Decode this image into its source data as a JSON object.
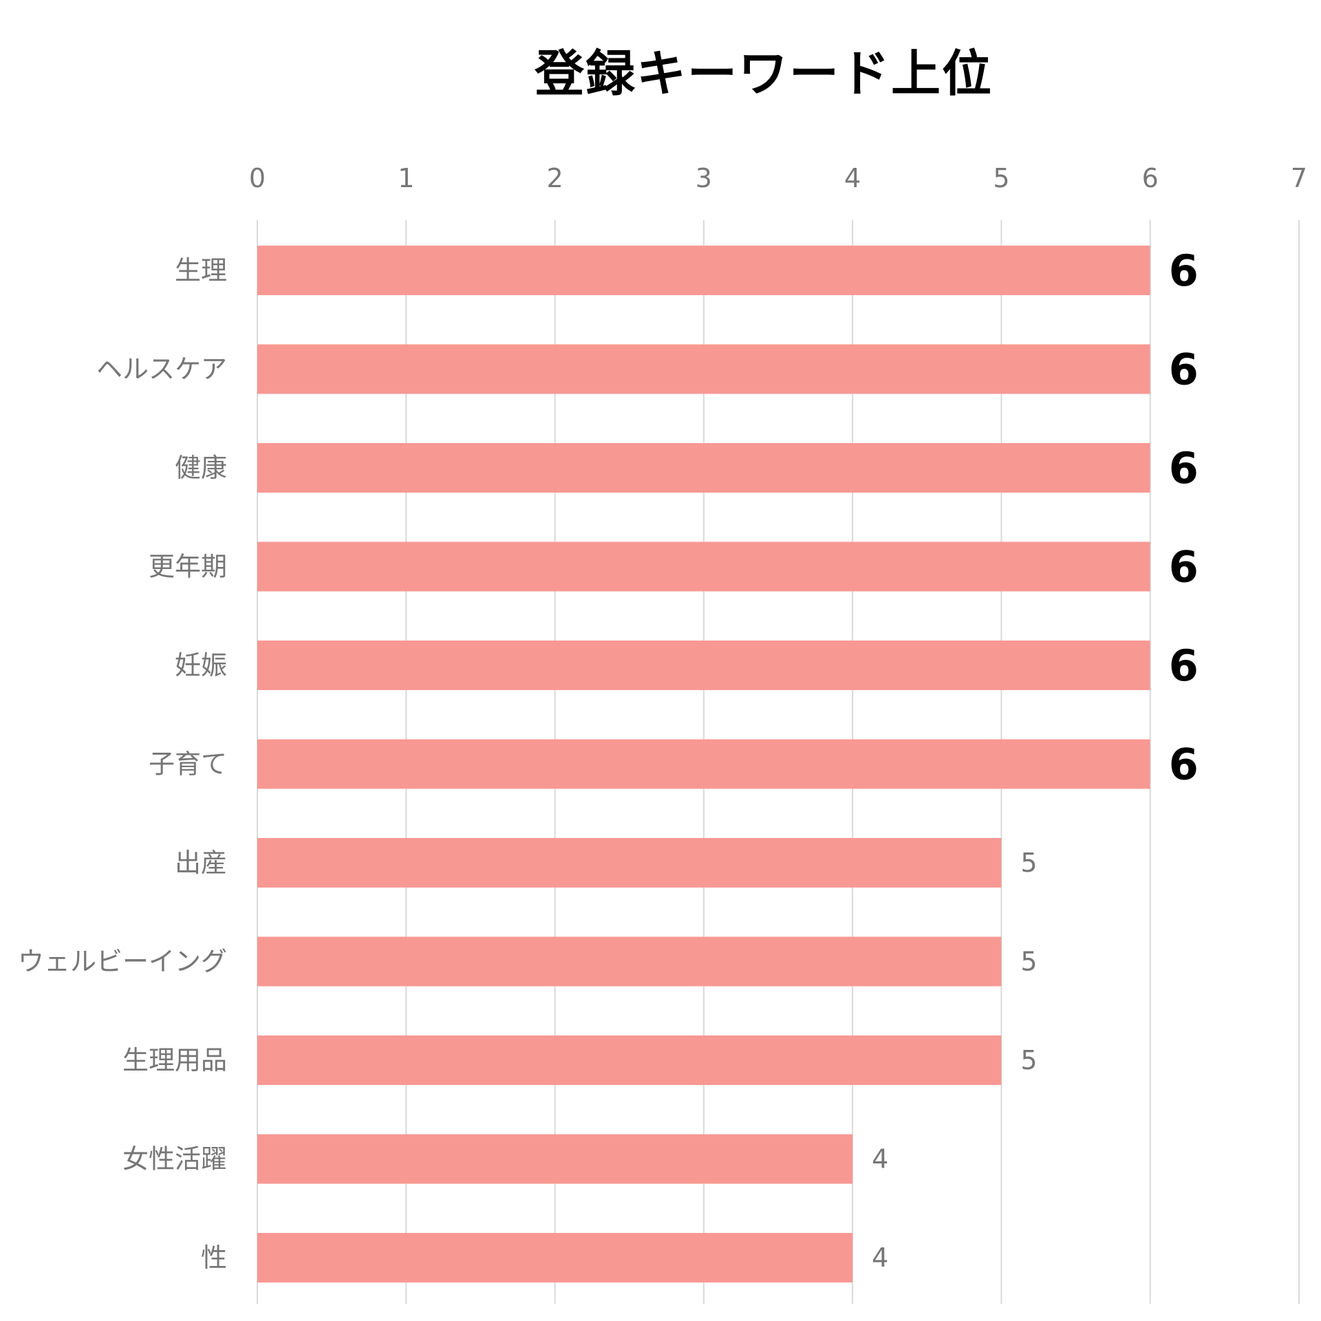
{
  "chart_data": {
    "type": "bar",
    "orientation": "horizontal",
    "title": "登録キーワード上位",
    "categories": [
      "生理",
      "ヘルスケア",
      "健康",
      "更年期",
      "妊娠",
      "子育て",
      "出産",
      "ウェルビーイング",
      "生理用品",
      "女性活躍",
      "性"
    ],
    "values": [
      6,
      6,
      6,
      6,
      6,
      6,
      5,
      5,
      5,
      4,
      4
    ],
    "xlim": [
      0,
      7
    ],
    "xticks": [
      "0",
      "1",
      "2",
      "3",
      "4",
      "5",
      "6",
      "7"
    ],
    "xaxis_position": "top",
    "grid": true,
    "data_labels": true,
    "highlight_max_labels": true,
    "colors": {
      "bar": "#F89893",
      "grid": "#D9D9D9",
      "tick_text": "#767676",
      "highlight_label": "#000000"
    }
  }
}
